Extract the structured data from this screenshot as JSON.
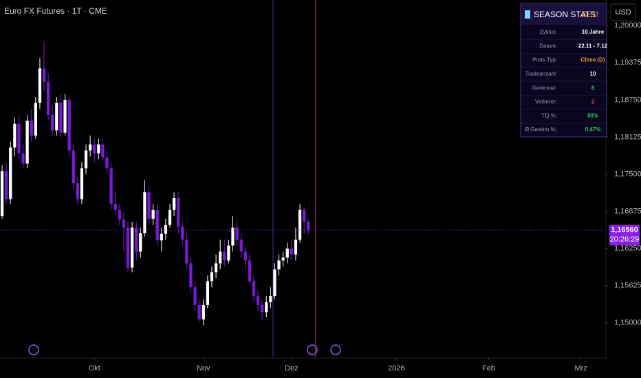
{
  "chart_data": {
    "type": "candlestick",
    "title": "Euro FX Futures · 1T · CME",
    "open": [
      1.168,
      1.1755,
      1.1708,
      1.1795,
      1.1835,
      1.1785,
      1.1768,
      1.184,
      1.1815,
      1.187,
      1.1928,
      1.1905,
      1.185,
      1.1824,
      1.187,
      1.182,
      1.1875,
      1.179,
      1.1735,
      1.1708,
      1.176,
      1.179,
      1.18,
      1.1785,
      1.18,
      1.1778,
      1.176,
      1.17,
      1.169,
      1.1674,
      1.166,
      1.1593,
      1.166,
      1.162,
      1.1651,
      1.172,
      1.1675,
      1.169,
      1.1639,
      1.165,
      1.1665,
      1.169,
      1.171,
      1.1662,
      1.164,
      1.16,
      1.156,
      1.153,
      1.1506,
      1.153,
      1.157,
      1.1585,
      1.16,
      1.162,
      1.1605,
      1.163,
      1.166,
      1.164,
      1.162,
      1.1605,
      1.157,
      1.1545,
      1.153,
      1.1518,
      1.1535,
      1.1545,
      1.159,
      1.1605,
      1.161,
      1.1625,
      1.1615,
      1.164,
      1.169,
      1.167
    ],
    "high": [
      1.1765,
      1.177,
      1.1805,
      1.1845,
      1.185,
      1.18,
      1.185,
      1.186,
      1.188,
      1.1945,
      1.1974,
      1.192,
      1.1865,
      1.188,
      1.1885,
      1.1885,
      1.188,
      1.18,
      1.1745,
      1.177,
      1.18,
      1.1815,
      1.181,
      1.181,
      1.181,
      1.179,
      1.177,
      1.172,
      1.17,
      1.1685,
      1.167,
      1.167,
      1.167,
      1.166,
      1.174,
      1.173,
      1.17,
      1.17,
      1.166,
      1.1675,
      1.17,
      1.172,
      1.172,
      1.167,
      1.165,
      1.161,
      1.157,
      1.154,
      1.154,
      1.158,
      1.1595,
      1.1615,
      1.164,
      1.164,
      1.164,
      1.168,
      1.167,
      1.165,
      1.163,
      1.1615,
      1.158,
      1.1555,
      1.154,
      1.1545,
      1.156,
      1.16,
      1.1615,
      1.162,
      1.1635,
      1.164,
      1.166,
      1.17,
      1.1695,
      1.1675
    ],
    "low": [
      1.1675,
      1.17,
      1.17,
      1.178,
      1.1775,
      1.176,
      1.176,
      1.1805,
      1.181,
      1.186,
      1.189,
      1.184,
      1.1815,
      1.1815,
      1.181,
      1.1815,
      1.178,
      1.1725,
      1.17,
      1.17,
      1.175,
      1.178,
      1.177,
      1.1775,
      1.177,
      1.175,
      1.169,
      1.168,
      1.1665,
      1.162,
      1.1585,
      1.1585,
      1.1605,
      1.161,
      1.1645,
      1.1665,
      1.1665,
      1.163,
      1.162,
      1.164,
      1.166,
      1.168,
      1.165,
      1.163,
      1.159,
      1.155,
      1.152,
      1.15,
      1.1496,
      1.1525,
      1.156,
      1.1575,
      1.159,
      1.1595,
      1.16,
      1.162,
      1.163,
      1.161,
      1.159,
      1.1565,
      1.1535,
      1.152,
      1.1505,
      1.151,
      1.1525,
      1.154,
      1.158,
      1.1595,
      1.16,
      1.1605,
      1.1605,
      1.1635,
      1.165,
      1.165
    ],
    "close": [
      1.1755,
      1.1708,
      1.1795,
      1.1835,
      1.1785,
      1.1768,
      1.184,
      1.1815,
      1.187,
      1.1928,
      1.1905,
      1.185,
      1.1824,
      1.187,
      1.182,
      1.1875,
      1.179,
      1.1735,
      1.1708,
      1.176,
      1.179,
      1.18,
      1.1785,
      1.18,
      1.1778,
      1.176,
      1.17,
      1.169,
      1.1674,
      1.166,
      1.1593,
      1.166,
      1.162,
      1.1651,
      1.172,
      1.1675,
      1.169,
      1.1639,
      1.165,
      1.1665,
      1.169,
      1.171,
      1.1662,
      1.164,
      1.16,
      1.156,
      1.153,
      1.1506,
      1.153,
      1.157,
      1.1585,
      1.16,
      1.162,
      1.1605,
      1.163,
      1.166,
      1.164,
      1.162,
      1.1605,
      1.157,
      1.1545,
      1.153,
      1.1518,
      1.1535,
      1.1545,
      1.159,
      1.1605,
      1.161,
      1.1625,
      1.1615,
      1.164,
      1.169,
      1.167,
      1.1656
    ],
    "up_color": "#ffffff",
    "down_color": "#7b19d8",
    "xlim": [
      -0.5,
      143.8
    ],
    "xticks": [
      {
        "value": 22,
        "label": "Okt"
      },
      {
        "value": 48,
        "label": "Nov"
      },
      {
        "value": 69,
        "label": "Dez"
      },
      {
        "value": 94,
        "label": "2026"
      },
      {
        "value": 116,
        "label": "Feb"
      },
      {
        "value": 138,
        "label": "Mrz"
      }
    ],
    "ylim": [
      1.1442,
      1.2043
    ],
    "yticks": [
      {
        "value": 1.2,
        "label": "1,20000"
      },
      {
        "value": 1.19375,
        "label": "1,19375"
      },
      {
        "value": 1.1875,
        "label": "1,18750"
      },
      {
        "value": 1.18125,
        "label": "1,18125"
      },
      {
        "value": 1.175,
        "label": "1,17500"
      },
      {
        "value": 1.16875,
        "label": "1,16875"
      },
      {
        "value": 1.1625,
        "label": "1,16250"
      },
      {
        "value": 1.15625,
        "label": "1,15625"
      },
      {
        "value": 1.15,
        "label": "1,15000"
      }
    ],
    "grid": false,
    "vlines": [
      {
        "value": 64.6,
        "color": "#3a3aa8"
      },
      {
        "value": 74.7,
        "color": "#a8323a"
      }
    ],
    "last_price": {
      "value": 1.1656,
      "label": "1,16560",
      "countdown": "20:26:29",
      "color": "#8a1ee6"
    },
    "currency": "USD"
  },
  "season_stats": {
    "title": "SEASON STATS",
    "symbol": "6E1!",
    "rows": [
      {
        "label": "Zyklus:",
        "value": "10 Jahre",
        "color": "#ffffff"
      },
      {
        "label": "Datum:",
        "value": "22.11 - 7.12",
        "color": "#ffffff"
      },
      {
        "label": "Preis-Typ:",
        "value": "Close (D)",
        "color": "#f0a030"
      },
      {
        "label": "Tradeanzahl:",
        "value": "10",
        "color": "#ffffff"
      },
      {
        "label": "Gewinner:",
        "value": "8",
        "color": "#22c55e"
      },
      {
        "label": "Verlierer:",
        "value": "2",
        "color": "#ef4444"
      },
      {
        "label": "TQ %:",
        "value": "80%",
        "color": "#22c55e"
      },
      {
        "label": "Ø Gewinn %:",
        "value": "0.47%",
        "color": "#22c55e"
      }
    ]
  }
}
